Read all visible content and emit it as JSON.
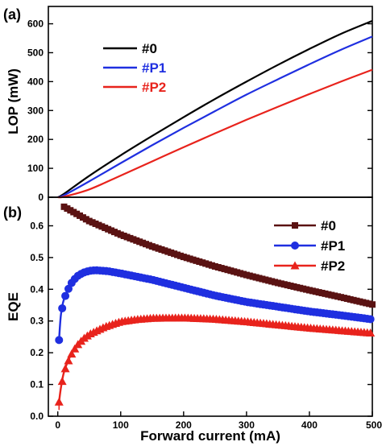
{
  "chart_data": [
    {
      "panel_label": "(a)",
      "type": "line",
      "title": "",
      "xlabel": "",
      "ylabel": "LOP (mW)",
      "xlim": [
        -15,
        500
      ],
      "ylim": [
        0,
        660
      ],
      "xticks": [],
      "yticks": [
        0,
        100,
        200,
        300,
        400,
        500,
        600
      ],
      "legend_position": "upper-left",
      "series": [
        {
          "name": "#0",
          "color": "#000000",
          "x": [
            0,
            10,
            50,
            100,
            150,
            200,
            250,
            300,
            350,
            400,
            450,
            500
          ],
          "y": [
            0,
            12,
            74,
            145,
            212,
            277,
            340,
            400,
            458,
            513,
            565,
            610
          ]
        },
        {
          "name": "#P1",
          "color": "#1f2fe0",
          "x": [
            0,
            10,
            50,
            100,
            150,
            200,
            250,
            300,
            350,
            400,
            450,
            500
          ],
          "y": [
            0,
            7,
            55,
            118,
            180,
            240,
            298,
            355,
            408,
            460,
            510,
            556
          ]
        },
        {
          "name": "#P2",
          "color": "#e8231c",
          "x": [
            0,
            10,
            50,
            100,
            150,
            200,
            250,
            300,
            350,
            400,
            450,
            500
          ],
          "y": [
            0,
            2,
            27,
            75,
            124,
            173,
            221,
            268,
            313,
            357,
            400,
            441
          ]
        }
      ]
    },
    {
      "panel_label": "(b)",
      "type": "line",
      "title": "",
      "xlabel": "Forward current (mA)",
      "ylabel": "EQE",
      "xlim": [
        -15,
        500
      ],
      "ylim": [
        0,
        0.69
      ],
      "xticks": [
        0,
        100,
        200,
        300,
        400,
        500
      ],
      "xtick_labels": [
        "0",
        "100",
        "200",
        "300",
        "400",
        "500"
      ],
      "yticks": [
        0.0,
        0.1,
        0.2,
        0.3,
        0.4,
        0.5,
        0.6
      ],
      "ytick_labels": [
        "0.0",
        "0.1",
        "0.2",
        "0.3",
        "0.4",
        "0.5",
        "0.6"
      ],
      "legend_position": "upper-right",
      "series": [
        {
          "name": "#0",
          "color": "#5a1212",
          "marker": "square",
          "x": [
            10,
            50,
            100,
            150,
            200,
            250,
            300,
            350,
            400,
            450,
            500
          ],
          "y": [
            0.66,
            0.615,
            0.572,
            0.535,
            0.502,
            0.472,
            0.445,
            0.42,
            0.397,
            0.375,
            0.352
          ]
        },
        {
          "name": "#P1",
          "color": "#1f2fe0",
          "marker": "circle",
          "x": [
            2,
            5,
            10,
            20,
            30,
            40,
            50,
            60,
            80,
            100,
            150,
            200,
            250,
            300,
            350,
            400,
            450,
            500
          ],
          "y": [
            0.24,
            0.32,
            0.37,
            0.415,
            0.44,
            0.452,
            0.458,
            0.46,
            0.457,
            0.45,
            0.43,
            0.405,
            0.38,
            0.36,
            0.345,
            0.33,
            0.318,
            0.305
          ]
        },
        {
          "name": "#P2",
          "color": "#e8231c",
          "marker": "triangle",
          "x": [
            2,
            5,
            10,
            20,
            30,
            40,
            50,
            75,
            100,
            125,
            150,
            200,
            250,
            300,
            350,
            400,
            450,
            500
          ],
          "y": [
            0.045,
            0.09,
            0.14,
            0.19,
            0.222,
            0.243,
            0.258,
            0.282,
            0.298,
            0.305,
            0.309,
            0.31,
            0.306,
            0.298,
            0.288,
            0.278,
            0.27,
            0.262
          ]
        }
      ]
    }
  ]
}
